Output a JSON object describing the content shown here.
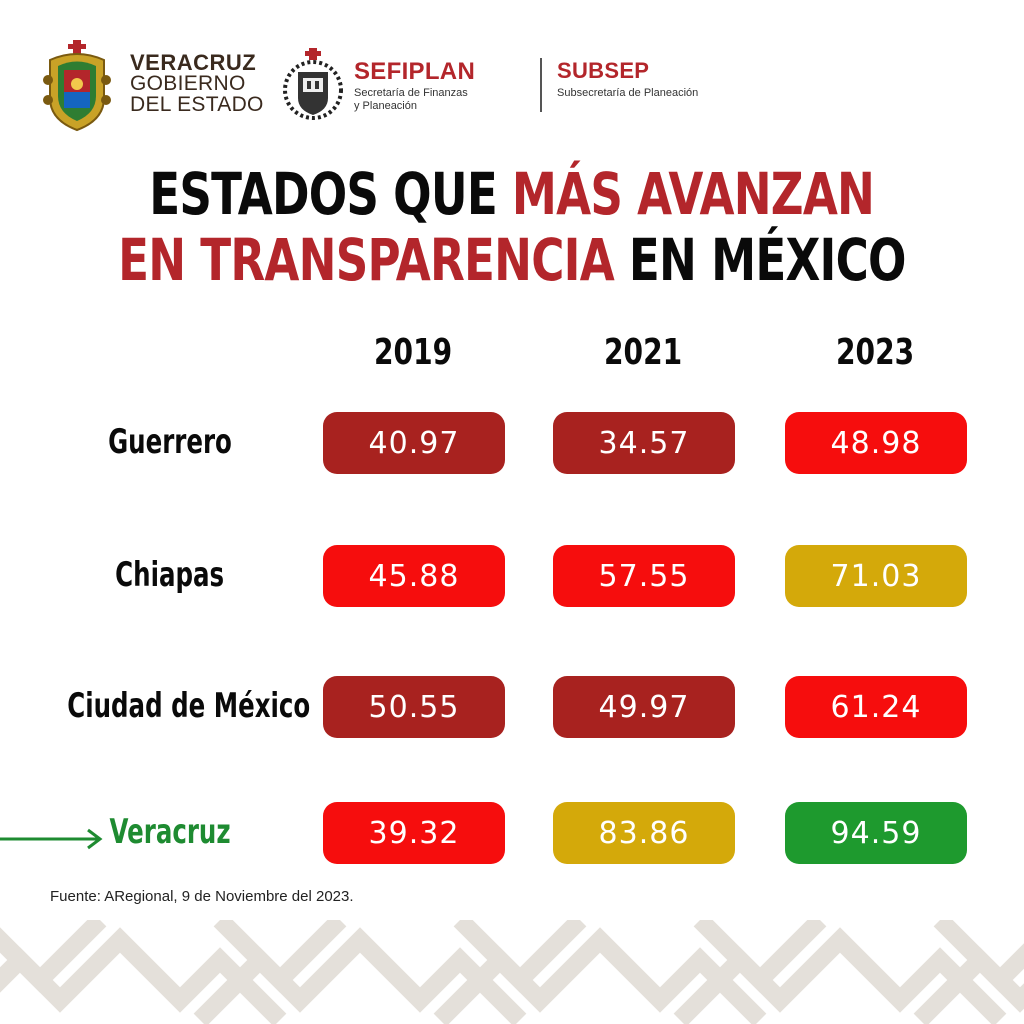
{
  "header": {
    "gobierno": {
      "line1": "VERACRUZ",
      "line2": "GOBIERNO",
      "line3": "DEL ESTADO"
    },
    "sefiplan": {
      "name": "SEFIPLAN",
      "sub1": "Secretaría de Finanzas",
      "sub2": "y Planeación"
    },
    "subsep": {
      "name": "SUBSEP",
      "sub": "Subsecretaría de Planeación"
    }
  },
  "title": {
    "line1_black": "ESTADOS QUE ",
    "line1_red": "MÁS AVANZAN",
    "line2_red": "EN TRANSPARENCIA",
    "line2_black": " EN MÉXICO"
  },
  "chart_data": {
    "type": "table",
    "title": "ESTADOS QUE MÁS AVANZAN EN TRANSPARENCIA EN MÉXICO",
    "columns": [
      "2019",
      "2021",
      "2023"
    ],
    "rows": [
      {
        "label": "Guerrero",
        "values": [
          "40.97",
          "34.57",
          "48.98"
        ],
        "colors": [
          "#a8221f",
          "#a8221f",
          "#f60d0d"
        ],
        "highlight": false
      },
      {
        "label": "Chiapas",
        "values": [
          "45.88",
          "57.55",
          "71.03"
        ],
        "colors": [
          "#f60d0d",
          "#f60d0d",
          "#d4a90a"
        ],
        "highlight": false
      },
      {
        "label": "Ciudad de México",
        "values": [
          "50.55",
          "49.97",
          "61.24"
        ],
        "colors": [
          "#a8221f",
          "#a8221f",
          "#f60d0d"
        ],
        "highlight": false
      },
      {
        "label": "Veracruz",
        "values": [
          "39.32",
          "83.86",
          "94.59"
        ],
        "colors": [
          "#f60d0d",
          "#d4a90a",
          "#1e9a2e"
        ],
        "highlight": true
      }
    ]
  },
  "colors": {
    "dark_red": "#a8221f",
    "red": "#f60d0d",
    "yellow": "#d4a90a",
    "green": "#1e9a2e",
    "accent_red": "#b3262b",
    "highlight_green": "#1e8b31"
  },
  "source": "Fuente: ARegional, 9 de Noviembre del 2023."
}
